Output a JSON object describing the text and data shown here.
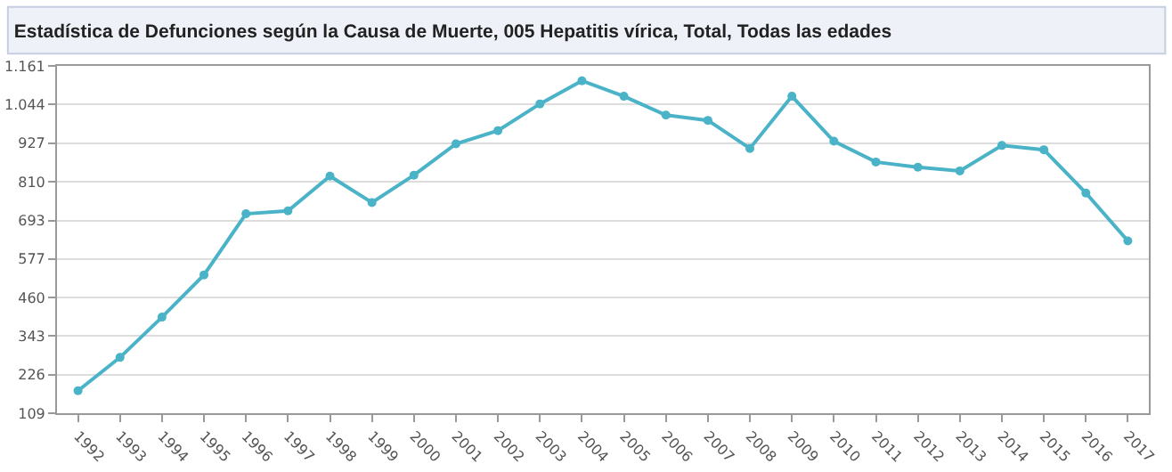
{
  "chart_data": {
    "type": "line",
    "title": "Estadística de Defunciones según la Causa de Muerte, 005 Hepatitis vírica, Total, Todas las edades",
    "categories": [
      "1992",
      "1993",
      "1994",
      "1995",
      "1996",
      "1997",
      "1998",
      "1999",
      "2000",
      "2001",
      "2002",
      "2003",
      "2004",
      "2005",
      "2006",
      "2007",
      "2008",
      "2009",
      "2010",
      "2011",
      "2012",
      "2013",
      "2014",
      "2015",
      "2016",
      "2017"
    ],
    "series": [
      {
        "color": "#4bb3c8",
        "values": [
          177,
          278,
          400,
          528,
          713,
          722,
          827,
          747,
          830,
          925,
          965,
          1046,
          1116,
          1069,
          1012,
          996,
          911,
          1069,
          933,
          870,
          854,
          843,
          920,
          907,
          776,
          631
        ]
      }
    ],
    "ylim": [
      109,
      1161
    ],
    "yticks": [
      109,
      226,
      343,
      460,
      577,
      693,
      810,
      927,
      {
        "value": 1044,
        "label": "1.044"
      },
      {
        "value": 1161,
        "label": "1.161"
      }
    ],
    "grid": "y",
    "marker": "circle",
    "line_style": "solid"
  }
}
